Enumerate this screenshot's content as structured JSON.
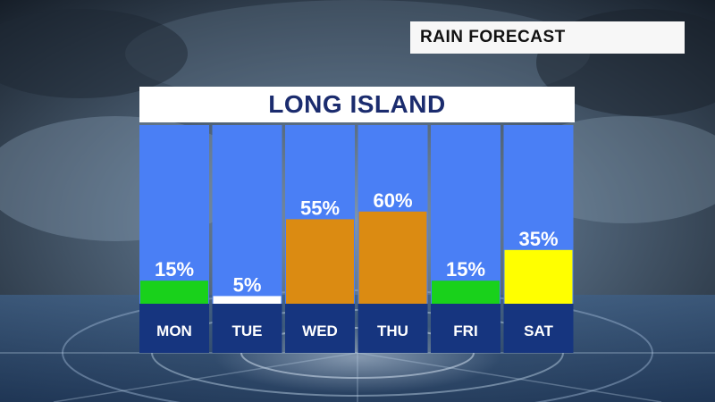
{
  "header": {
    "title": "RAIN FORECAST",
    "region": "LONG ISLAND"
  },
  "chart_data": {
    "type": "bar",
    "categories": [
      "MON",
      "TUE",
      "WED",
      "THU",
      "FRI",
      "SAT"
    ],
    "values": [
      15,
      5,
      55,
      60,
      15,
      35
    ],
    "value_labels": [
      "15%",
      "5%",
      "55%",
      "60%",
      "15%",
      "35%"
    ],
    "bar_colors": [
      "#19d11b",
      "#ffffff",
      "#db8b12",
      "#db8b12",
      "#19d11b",
      "#ffff00"
    ],
    "ylim": [
      0,
      100
    ],
    "unit": "%",
    "title": "LONG ISLAND"
  },
  "colors": {
    "column_bg": "#4a7ff5",
    "day_bar": "#16357f",
    "title_text": "#1b2c6e"
  }
}
